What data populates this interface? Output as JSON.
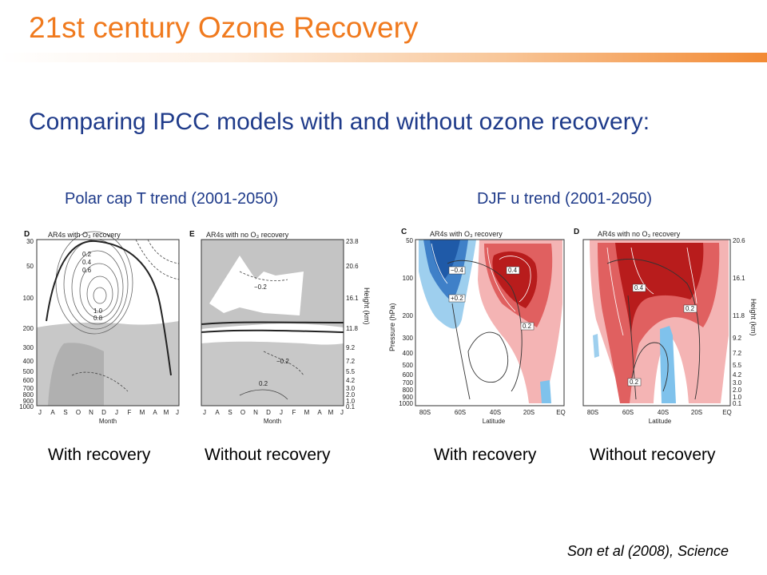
{
  "slide": {
    "title": "21st century Ozone Recovery",
    "subtitle": "Comparing IPCC models with and without ozone recovery:",
    "left_heading": "Polar cap T trend (2001-2050)",
    "right_heading": "DJF u trend (2001-2050)",
    "captions": [
      "With recovery",
      "Without recovery",
      "With recovery",
      "Without recovery"
    ],
    "citation": "Son et al (2008), Science",
    "accent_color": "#f07a1e",
    "text_color": "#1f3b8a"
  },
  "panels": {
    "D": {
      "letter": "D",
      "title": "AR4s with O₃ recovery",
      "pressure_ticks": [
        "30",
        "50",
        "100",
        "200",
        "300",
        "400",
        "500",
        "600",
        "700",
        "800",
        "900",
        "1000"
      ],
      "month_ticks": [
        "J",
        "A",
        "S",
        "O",
        "N",
        "D",
        "J",
        "F",
        "M",
        "A",
        "M",
        "J"
      ],
      "xlabel": "Month",
      "contour_labels": [
        "0.2",
        "0.4",
        "0.6",
        "1.0",
        "0.8"
      ]
    },
    "E": {
      "letter": "E",
      "title": "AR4s with no O₃ recovery",
      "height_ticks": [
        "23.8",
        "20.6",
        "16.1",
        "11.8",
        "9.2",
        "7.2",
        "5.5",
        "4.2",
        "3.0",
        "2.0",
        "1.0",
        "0.1"
      ],
      "month_ticks": [
        "J",
        "A",
        "S",
        "O",
        "N",
        "D",
        "J",
        "F",
        "M",
        "A",
        "M",
        "J"
      ],
      "xlabel": "Month",
      "ylabel_right": "Height (km)",
      "contour_labels": [
        "−0.2",
        "−0.2",
        "0.2"
      ]
    },
    "C": {
      "letter": "C",
      "title": "AR4s with O₃ recovery",
      "pressure_ticks": [
        "50",
        "100",
        "200",
        "300",
        "400",
        "500",
        "600",
        "700",
        "800",
        "900",
        "1000"
      ],
      "ylabel": "Pressure (hPa)",
      "lat_ticks": [
        "80S",
        "60S",
        "40S",
        "20S",
        "EQ"
      ],
      "xlabel": "Latitude",
      "contour_labels": [
        "−0.4",
        "+0.2",
        "0.4",
        "0.2"
      ]
    },
    "Dr": {
      "letter": "D",
      "title": "AR4s with no O₃ recovery",
      "height_ticks": [
        "20.6",
        "16.1",
        "11.8",
        "9.2",
        "7.2",
        "5.5",
        "4.2",
        "3.0",
        "2.0",
        "1.0",
        "0.1"
      ],
      "ylabel_right": "Height (km)",
      "lat_ticks": [
        "80S",
        "60S",
        "40S",
        "20S",
        "EQ"
      ],
      "xlabel": "Latitude",
      "contour_labels": [
        "0.4",
        "0.2",
        "0.2"
      ]
    }
  }
}
